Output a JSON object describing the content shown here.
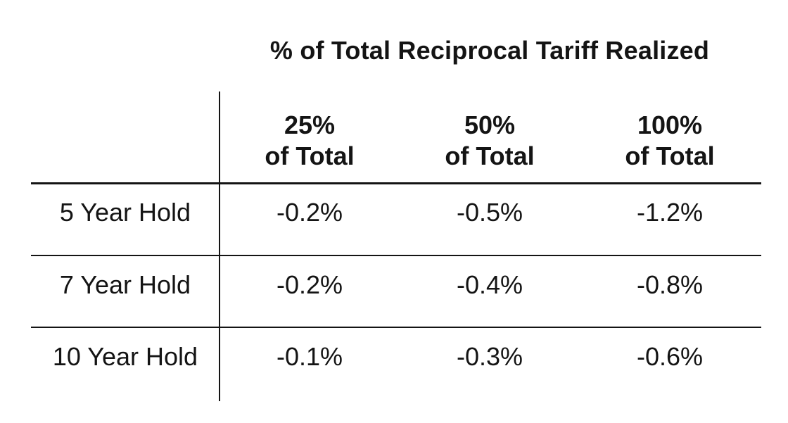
{
  "chart_data": {
    "type": "table",
    "title": "% of Total Reciprocal Tariff Realized",
    "columns": [
      {
        "line1": "25%",
        "line2": "of Total"
      },
      {
        "line1": "50%",
        "line2": "of Total"
      },
      {
        "line1": "100%",
        "line2": "of Total"
      }
    ],
    "rows": [
      {
        "label": "5 Year Hold",
        "values": [
          "-0.2%",
          "-0.5%",
          "-1.2%"
        ]
      },
      {
        "label": "7 Year Hold",
        "values": [
          "-0.2%",
          "-0.4%",
          "-0.8%"
        ]
      },
      {
        "label": "10 Year Hold",
        "values": [
          "-0.1%",
          "-0.3%",
          "-0.6%"
        ]
      }
    ]
  }
}
